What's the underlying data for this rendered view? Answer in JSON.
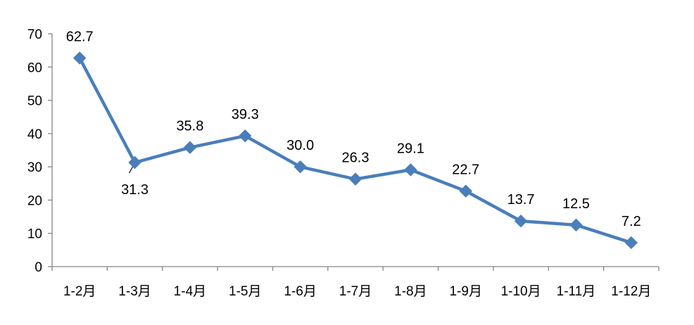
{
  "chart_data": {
    "type": "line",
    "categories": [
      "1-2月",
      "1-3月",
      "1-4月",
      "1-5月",
      "1-6月",
      "1-7月",
      "1-8月",
      "1-9月",
      "1-10月",
      "1-11月",
      "1-12月"
    ],
    "series": [
      {
        "values": [
          62.7,
          31.3,
          35.8,
          39.3,
          30.0,
          26.3,
          29.1,
          22.7,
          13.7,
          12.5,
          7.2
        ],
        "data_labels": [
          "62.7",
          "31.3",
          "35.8",
          "39.3",
          "30.0",
          "26.3",
          "29.1",
          "22.7",
          "13.7",
          "12.5",
          "7.2"
        ],
        "color": "#4a7ebb",
        "marker": "diamond"
      }
    ],
    "ylim": [
      0,
      70
    ],
    "yticks": [
      0,
      10,
      20,
      30,
      40,
      50,
      60,
      70
    ],
    "grid": false,
    "legend": "none"
  }
}
